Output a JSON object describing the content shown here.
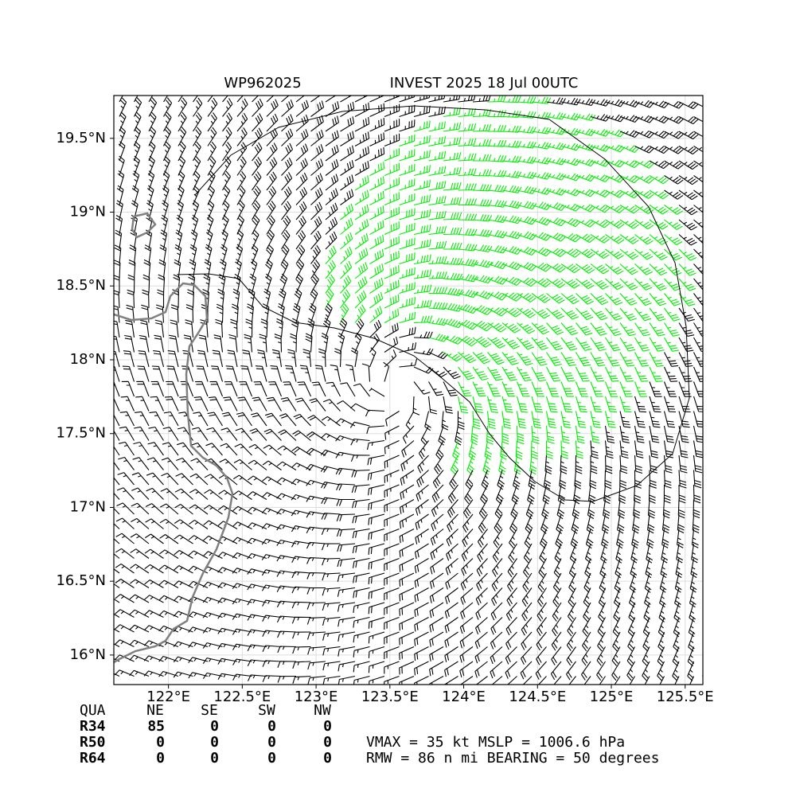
{
  "chart_data": {
    "type": "wind-barb-map",
    "title_left": "WP962025",
    "title_right": "INVEST 2025 18 Jul 00UTC",
    "xlim": [
      121.63,
      125.62
    ],
    "ylim": [
      15.8,
      19.79
    ],
    "xticks": [
      {
        "value": 122,
        "label": "122°E"
      },
      {
        "value": 122.5,
        "label": "122.5°E"
      },
      {
        "value": 123,
        "label": "123°E"
      },
      {
        "value": 123.5,
        "label": "123.5°E"
      },
      {
        "value": 124,
        "label": "124°E"
      },
      {
        "value": 124.5,
        "label": "124.5°E"
      },
      {
        "value": 125,
        "label": "125°E"
      },
      {
        "value": 125.5,
        "label": "125.5°E"
      }
    ],
    "yticks": [
      {
        "value": 16,
        "label": "16°N"
      },
      {
        "value": 16.5,
        "label": "16.5°N"
      },
      {
        "value": 17,
        "label": "17°N"
      },
      {
        "value": 17.5,
        "label": "17.5°N"
      },
      {
        "value": 18,
        "label": "18°N"
      },
      {
        "value": 18.5,
        "label": "18.5°N"
      },
      {
        "value": 19,
        "label": "19°N"
      },
      {
        "value": 19.5,
        "label": "19.5°N"
      }
    ],
    "grid": true,
    "colors": {
      "weak": "#000000",
      "r34": "#00ee00",
      "r50": "#f5a300",
      "coast": "#808080"
    }
  },
  "table": {
    "header": [
      "QUA",
      "NE",
      "SE",
      "SW",
      "NW"
    ],
    "rows": [
      [
        "R34",
        "85",
        "0",
        "0",
        "0"
      ],
      [
        "R50",
        "0",
        "0",
        "0",
        "0"
      ],
      [
        "R64",
        "0",
        "0",
        "0",
        "0"
      ]
    ]
  },
  "info": [
    "VMAX =  35 kt MSLP = 1006.6 hPa",
    "RMW =  86 n mi BEARING =  50 degrees"
  ]
}
